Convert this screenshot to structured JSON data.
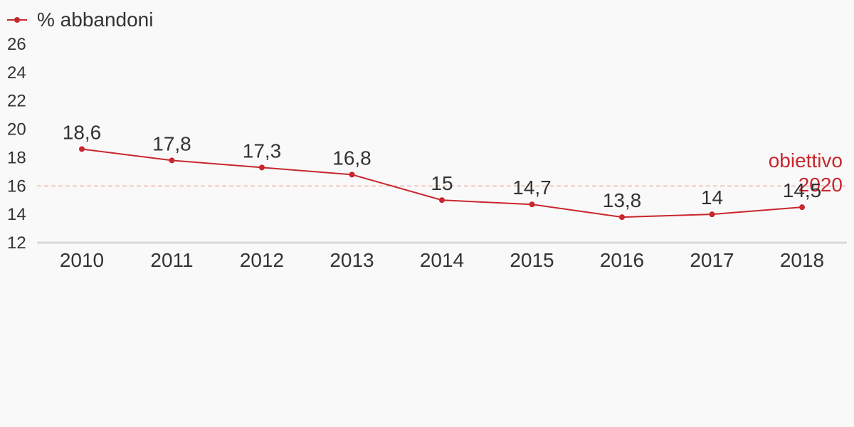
{
  "colors": {
    "series": "#c8272d",
    "target_line": "#f4b6b3",
    "axis": "#d9d9d9",
    "text": "#333333",
    "background": "#f9f9f9"
  },
  "chart_data": {
    "type": "line",
    "title": "",
    "xlabel": "",
    "ylabel": "",
    "categories": [
      "2010",
      "2011",
      "2012",
      "2013",
      "2014",
      "2015",
      "2016",
      "2017",
      "2018"
    ],
    "series": [
      {
        "name": "% abbandoni",
        "values": [
          18.6,
          17.8,
          17.3,
          16.8,
          15,
          14.7,
          13.8,
          14,
          14.5
        ],
        "labels": [
          "18,6",
          "17,8",
          "17,3",
          "16,8",
          "15",
          "14,7",
          "13,8",
          "14",
          "14,5"
        ]
      }
    ],
    "ylim": [
      12,
      26
    ],
    "yticks": [
      12,
      14,
      16,
      18,
      20,
      22,
      24,
      26
    ],
    "grid": false,
    "legend": "top-left",
    "reference_line": {
      "value": 16,
      "label_line1": "obiettivo",
      "label_line2": "2020",
      "style": "dashed"
    }
  }
}
